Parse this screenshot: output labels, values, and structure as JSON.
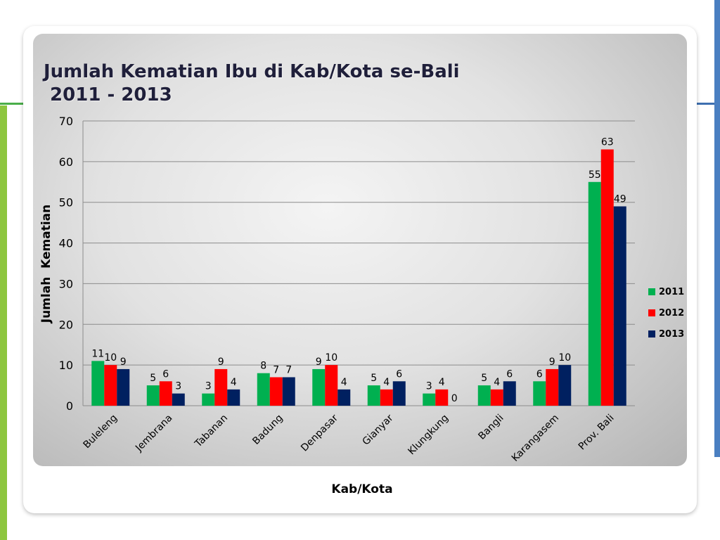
{
  "colors": {
    "s2011": "#00b050",
    "s2012": "#ff0000",
    "s2013": "#002060"
  },
  "chart_data": {
    "type": "bar",
    "title": [
      "Jumlah Kematian Ibu di Kab/Kota se-Bali",
      " 2011 - 2013"
    ],
    "xlabel": "Kab/Kota",
    "ylabel": "Jumlah  Kematian",
    "ylim": [
      0,
      70
    ],
    "yticks": [
      "0",
      "10",
      "20",
      "30",
      "40",
      "50",
      "60",
      "70"
    ],
    "grid": true,
    "legend_position": "right",
    "categories": [
      "Buleleng",
      "Jembrana",
      "Tabanan",
      "Badung",
      "Denpasar",
      "Gianyar",
      "Klungkung",
      "Bangli",
      "Karangasem",
      "Prov. Bali"
    ],
    "series": [
      {
        "name": "2011",
        "values": [
          11,
          5,
          3,
          8,
          9,
          5,
          3,
          5,
          6,
          55
        ]
      },
      {
        "name": "2012",
        "values": [
          10,
          6,
          9,
          7,
          10,
          4,
          4,
          4,
          9,
          63
        ]
      },
      {
        "name": "2013",
        "values": [
          9,
          3,
          4,
          7,
          4,
          6,
          0,
          6,
          10,
          49
        ]
      }
    ]
  }
}
